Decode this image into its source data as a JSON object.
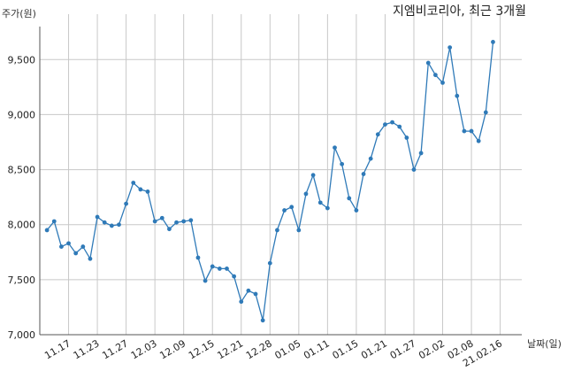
{
  "chart_data": {
    "type": "line",
    "title": "지엠비코리아, 최근 3개월",
    "ylabel": "주가(원)",
    "xlabel": "날짜(일)",
    "ylim": [
      7000,
      9800
    ],
    "yticks": [
      7000,
      7500,
      8000,
      8500,
      9000,
      9500
    ],
    "ytick_labels": [
      "7,000",
      "7,500",
      "8,000",
      "8,500",
      "9,000",
      "9,500"
    ],
    "xtick_labels": [
      "11.17",
      "11.23",
      "11.27",
      "12.03",
      "12.09",
      "12.15",
      "12.21",
      "12.28",
      "01.05",
      "01.11",
      "01.15",
      "01.21",
      "01.27",
      "02.02",
      "02.08",
      "21.02.16"
    ],
    "xtick_positions": [
      3,
      7,
      11,
      15,
      19,
      23,
      27,
      31,
      35,
      39,
      43,
      47,
      51,
      55,
      59,
      63
    ],
    "xlim": [
      -1,
      66
    ],
    "grid": true,
    "color": "#2f7ab8",
    "series": [
      {
        "values": [
          7950,
          8030,
          7800,
          7830,
          7740,
          7800,
          7690,
          8070,
          8020,
          7990,
          8000,
          8190,
          8380,
          8320,
          8300,
          8030,
          8060,
          7960,
          8020,
          8030,
          8040,
          7700,
          7490,
          7620,
          7600,
          7600,
          7530,
          7300,
          7400,
          7370,
          7130,
          7650,
          7950,
          8130,
          8160,
          7950,
          8280,
          8450,
          8200,
          8150,
          8700,
          8550,
          8240,
          8130,
          8460,
          8600,
          8820,
          8910,
          8930,
          8890,
          8790,
          8500,
          8650,
          9470,
          9360,
          9290,
          9610,
          9170,
          8850,
          8850,
          8760,
          9020,
          9660
        ]
      }
    ]
  }
}
